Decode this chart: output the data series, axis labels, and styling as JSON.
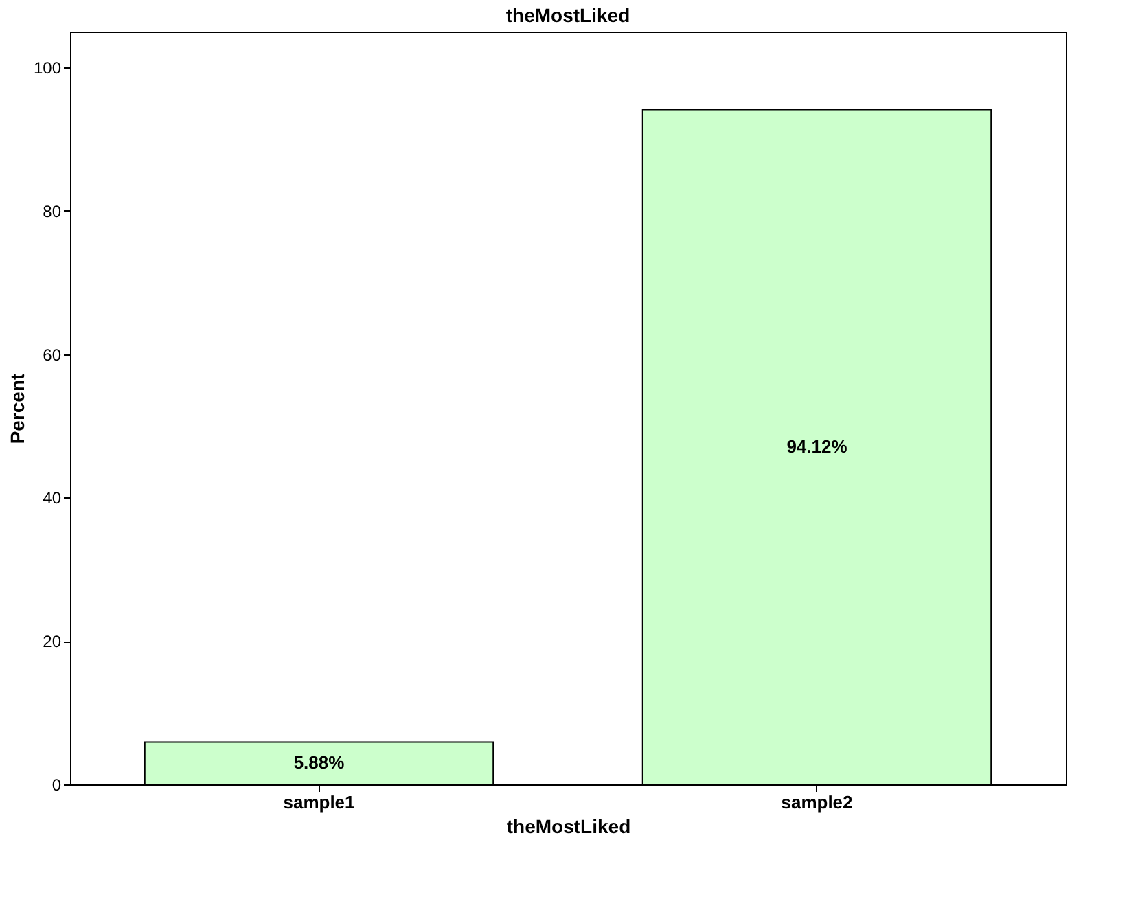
{
  "chart_data": {
    "type": "bar",
    "title": "theMostLiked",
    "xlabel": "theMostLiked",
    "ylabel": "Percent",
    "categories": [
      "sample1",
      "sample2"
    ],
    "values": [
      5.88,
      94.12
    ],
    "value_labels": [
      "5.88%",
      "94.12%"
    ],
    "color": "#ccffcc",
    "ylim": [
      0,
      105
    ],
    "yticks": [
      0,
      20,
      40,
      60,
      80,
      100
    ],
    "grid": false
  }
}
